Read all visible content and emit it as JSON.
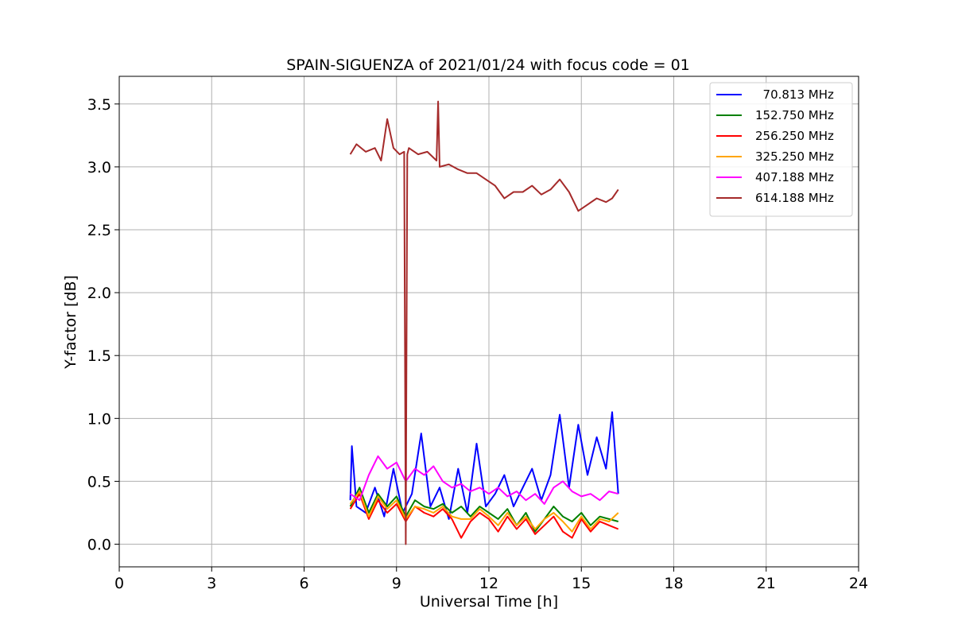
{
  "chart_data": {
    "type": "line",
    "title": "SPAIN-SIGUENZA of 2021/01/24 with focus code = 01",
    "xlabel": "Universal Time [h]",
    "ylabel": "Y-factor [dB]",
    "xlim": [
      0,
      24
    ],
    "ylim": [
      -0.18,
      3.72
    ],
    "xticks": [
      0,
      3,
      6,
      9,
      12,
      15,
      18,
      21,
      24
    ],
    "xtick_labels": [
      "0",
      "3",
      "6",
      "9",
      "12",
      "15",
      "18",
      "21",
      "24"
    ],
    "yticks": [
      0.0,
      0.5,
      1.0,
      1.5,
      2.0,
      2.5,
      3.0,
      3.5
    ],
    "ytick_labels": [
      "0.0",
      "0.5",
      "1.0",
      "1.5",
      "2.0",
      "2.5",
      "3.0",
      "3.5"
    ],
    "grid": true,
    "legend_position": "top-right",
    "series": [
      {
        "name": "  70.813 MHz",
        "color": "#0000ff",
        "x": [
          7.5,
          7.55,
          7.7,
          8.0,
          8.3,
          8.6,
          8.9,
          9.2,
          9.5,
          9.8,
          10.1,
          10.4,
          10.7,
          11.0,
          11.3,
          11.6,
          11.9,
          12.2,
          12.5,
          12.8,
          13.1,
          13.4,
          13.7,
          14.0,
          14.3,
          14.6,
          14.9,
          15.2,
          15.5,
          15.8,
          16.0,
          16.2
        ],
        "y": [
          0.35,
          0.78,
          0.3,
          0.25,
          0.45,
          0.22,
          0.6,
          0.25,
          0.4,
          0.88,
          0.3,
          0.45,
          0.2,
          0.6,
          0.25,
          0.8,
          0.3,
          0.4,
          0.55,
          0.3,
          0.45,
          0.6,
          0.35,
          0.55,
          1.03,
          0.45,
          0.95,
          0.55,
          0.85,
          0.6,
          1.05,
          0.4
        ]
      },
      {
        "name": "152.750 MHz",
        "color": "#008000",
        "x": [
          7.5,
          7.8,
          8.1,
          8.4,
          8.7,
          9.0,
          9.3,
          9.6,
          9.9,
          10.2,
          10.5,
          10.8,
          11.1,
          11.4,
          11.7,
          12.0,
          12.3,
          12.6,
          12.9,
          13.2,
          13.5,
          13.8,
          14.1,
          14.4,
          14.7,
          15.0,
          15.3,
          15.6,
          15.9,
          16.2
        ],
        "y": [
          0.3,
          0.45,
          0.25,
          0.4,
          0.3,
          0.38,
          0.22,
          0.35,
          0.3,
          0.28,
          0.32,
          0.25,
          0.3,
          0.22,
          0.3,
          0.25,
          0.2,
          0.28,
          0.15,
          0.25,
          0.1,
          0.2,
          0.3,
          0.22,
          0.18,
          0.25,
          0.15,
          0.22,
          0.2,
          0.18
        ]
      },
      {
        "name": "256.250 MHz",
        "color": "#ff0000",
        "x": [
          7.5,
          7.8,
          8.1,
          8.4,
          8.7,
          9.0,
          9.3,
          9.6,
          9.9,
          10.2,
          10.5,
          10.8,
          11.1,
          11.4,
          11.7,
          12.0,
          12.3,
          12.6,
          12.9,
          13.2,
          13.5,
          13.8,
          14.1,
          14.4,
          14.7,
          15.0,
          15.3,
          15.6,
          15.9,
          16.2
        ],
        "y": [
          0.28,
          0.4,
          0.2,
          0.35,
          0.25,
          0.32,
          0.18,
          0.3,
          0.25,
          0.22,
          0.28,
          0.2,
          0.05,
          0.18,
          0.25,
          0.2,
          0.1,
          0.22,
          0.12,
          0.2,
          0.08,
          0.15,
          0.22,
          0.1,
          0.05,
          0.2,
          0.1,
          0.18,
          0.15,
          0.12
        ]
      },
      {
        "name": "325.250 MHz",
        "color": "#ffa500",
        "x": [
          7.5,
          7.8,
          8.1,
          8.4,
          8.7,
          9.0,
          9.3,
          9.6,
          9.9,
          10.2,
          10.5,
          10.8,
          11.1,
          11.4,
          11.7,
          12.0,
          12.3,
          12.6,
          12.9,
          13.2,
          13.5,
          13.8,
          14.1,
          14.4,
          14.7,
          15.0,
          15.3,
          15.6,
          15.9,
          16.2
        ],
        "y": [
          0.32,
          0.42,
          0.22,
          0.38,
          0.28,
          0.35,
          0.2,
          0.3,
          0.28,
          0.25,
          0.3,
          0.22,
          0.2,
          0.2,
          0.28,
          0.22,
          0.15,
          0.25,
          0.15,
          0.22,
          0.12,
          0.2,
          0.25,
          0.18,
          0.1,
          0.22,
          0.12,
          0.2,
          0.18,
          0.25
        ]
      },
      {
        "name": "407.188 MHz",
        "color": "#ff00ff",
        "x": [
          7.5,
          7.8,
          8.1,
          8.4,
          8.7,
          9.0,
          9.3,
          9.6,
          9.9,
          10.2,
          10.5,
          10.8,
          11.1,
          11.4,
          11.7,
          12.0,
          12.3,
          12.6,
          12.9,
          13.2,
          13.5,
          13.8,
          14.1,
          14.4,
          14.7,
          15.0,
          15.3,
          15.6,
          15.9,
          16.2
        ],
        "y": [
          0.4,
          0.35,
          0.55,
          0.7,
          0.6,
          0.65,
          0.5,
          0.6,
          0.55,
          0.62,
          0.5,
          0.45,
          0.48,
          0.42,
          0.45,
          0.4,
          0.45,
          0.38,
          0.42,
          0.35,
          0.4,
          0.32,
          0.45,
          0.5,
          0.42,
          0.38,
          0.4,
          0.35,
          0.42,
          0.4
        ]
      },
      {
        "name": "614.188 MHz",
        "color": "#a52a2a",
        "x": [
          7.5,
          7.7,
          8.0,
          8.3,
          8.5,
          8.7,
          8.9,
          9.1,
          9.25,
          9.3,
          9.35,
          9.4,
          9.7,
          10.0,
          10.3,
          10.35,
          10.4,
          10.7,
          11.0,
          11.3,
          11.6,
          11.9,
          12.2,
          12.5,
          12.8,
          13.1,
          13.4,
          13.7,
          14.0,
          14.3,
          14.6,
          14.9,
          15.2,
          15.5,
          15.8,
          16.0,
          16.2
        ],
        "y": [
          3.1,
          3.18,
          3.12,
          3.15,
          3.05,
          3.38,
          3.15,
          3.1,
          3.12,
          0.0,
          3.1,
          3.15,
          3.1,
          3.12,
          3.05,
          3.52,
          3.0,
          3.02,
          2.98,
          2.95,
          2.95,
          2.9,
          2.85,
          2.75,
          2.8,
          2.8,
          2.85,
          2.78,
          2.82,
          2.9,
          2.8,
          2.65,
          2.7,
          2.75,
          2.72,
          2.75,
          2.82
        ]
      }
    ]
  }
}
